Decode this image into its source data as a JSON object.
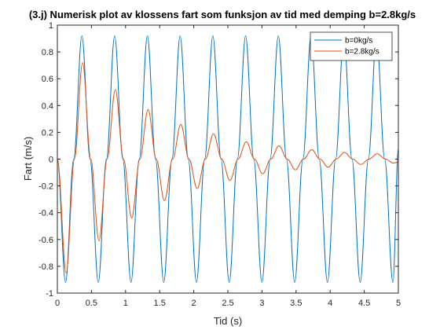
{
  "chart_data": {
    "type": "line",
    "title": "(3.j) Numerisk plot av klossens fart som funksjon av tid med demping b=2.8kg/s",
    "xlabel": "Tid (s)",
    "ylabel": "Fart (m/s)",
    "xlim": [
      0,
      5
    ],
    "ylim": [
      -1,
      1
    ],
    "xticks": [
      0,
      0.5,
      1,
      1.5,
      2,
      2.5,
      3,
      3.5,
      4,
      4.5,
      5
    ],
    "xtick_labels": [
      "0",
      "0.5",
      "1",
      "1.5",
      "2",
      "2.5",
      "3",
      "3.5",
      "4",
      "4.5",
      "5"
    ],
    "yticks": [
      -1,
      -0.8,
      -0.6,
      -0.4,
      -0.2,
      0,
      0.2,
      0.4,
      0.6,
      0.8,
      1
    ],
    "ytick_labels": [
      "-1",
      "-0.8",
      "-0.6",
      "-0.4",
      "-0.2",
      "0",
      "0.2",
      "0.4",
      "0.6",
      "0.8",
      "1"
    ],
    "grid": false,
    "legend_position": "top-right",
    "series": [
      {
        "name": "b=0kg/s",
        "color": "#0072BD",
        "x": [
          0,
          0.12,
          0.24,
          0.36,
          0.48,
          0.6,
          0.72,
          0.84,
          0.96,
          1.08,
          1.2,
          1.32,
          1.44,
          1.56,
          1.68,
          1.8,
          1.92,
          2.04,
          2.16,
          2.28,
          2.4,
          2.52,
          2.64,
          2.76,
          2.88,
          3.0,
          3.12,
          3.24,
          3.36,
          3.48,
          3.6,
          3.72,
          3.84,
          3.96,
          4.08,
          4.2,
          4.32,
          4.44,
          4.56,
          4.68,
          4.8,
          4.92,
          5.0
        ],
        "y": [
          0,
          -0.92,
          0,
          0.92,
          0,
          -0.92,
          0,
          0.92,
          0,
          -0.92,
          0,
          0.92,
          0,
          -0.92,
          0,
          0.92,
          0,
          -0.92,
          0,
          0.92,
          0,
          -0.92,
          0,
          0.92,
          0,
          -0.92,
          0,
          0.92,
          0,
          -0.92,
          0,
          0.92,
          0,
          -0.92,
          0,
          0.92,
          0,
          -0.92,
          0,
          0.92,
          0,
          -0.92,
          0.08
        ]
      },
      {
        "name": "b=2.8kg/s",
        "color": "#D95319",
        "x": [
          0,
          0.13,
          0.25,
          0.37,
          0.49,
          0.61,
          0.73,
          0.85,
          0.97,
          1.09,
          1.21,
          1.33,
          1.45,
          1.57,
          1.69,
          1.81,
          1.93,
          2.05,
          2.17,
          2.29,
          2.41,
          2.53,
          2.65,
          2.77,
          2.89,
          3.01,
          3.13,
          3.25,
          3.37,
          3.49,
          3.61,
          3.73,
          3.85,
          3.97,
          4.09,
          4.21,
          4.33,
          4.45,
          4.57,
          4.69,
          4.81,
          4.93,
          5.0
        ],
        "y": [
          0,
          -0.85,
          0,
          0.72,
          0,
          -0.61,
          0,
          0.52,
          0,
          -0.44,
          0,
          0.37,
          0,
          -0.31,
          0,
          0.26,
          0,
          -0.22,
          0,
          0.19,
          0,
          -0.16,
          0,
          0.13,
          0,
          -0.11,
          0,
          0.1,
          0,
          -0.08,
          0,
          0.07,
          0,
          -0.06,
          0,
          0.05,
          0,
          -0.04,
          0,
          0.04,
          0,
          -0.03,
          -0.02
        ]
      }
    ]
  }
}
